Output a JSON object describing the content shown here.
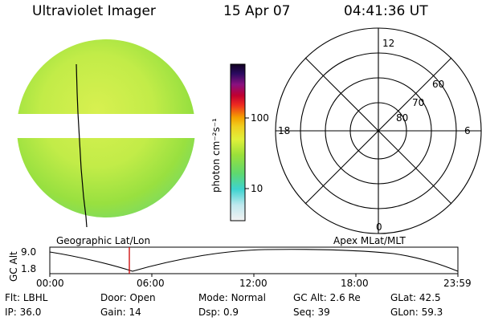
{
  "header": {
    "title": "Ultraviolet Imager",
    "date": "15 Apr 07",
    "time": "04:41:36 UT"
  },
  "colorbar": {
    "label": "photon cm⁻²s⁻¹",
    "ticks": [
      "100",
      "10"
    ]
  },
  "polar_plot": {
    "mlt_labels": [
      "12",
      "18",
      "6",
      "0"
    ],
    "mlat_labels": [
      "60",
      "70",
      "80"
    ]
  },
  "orbit_plot": {
    "left_label": "Geographic Lat/Lon",
    "right_label": "Apex MLat/MLT",
    "y_axis_title": "GC Alt",
    "y_ticks": [
      "9.0",
      "1.8"
    ],
    "x_ticks": [
      "00:00",
      "06:00",
      "12:00",
      "18:00",
      "23:59"
    ],
    "line_color": "#000000",
    "marker_color": "#cc0000"
  },
  "info": {
    "rows": [
      [
        {
          "label": "Flt:",
          "value": "LBHL"
        },
        {
          "label": "Door:",
          "value": "Open"
        },
        {
          "label": "Mode:",
          "value": "Normal"
        },
        {
          "label": "GC Alt:",
          "value": "2.6 Re"
        },
        {
          "label": "GLat:",
          "value": "42.5"
        }
      ],
      [
        {
          "label": "IP:",
          "value": "36.0"
        },
        {
          "label": "Gain:",
          "value": "14"
        },
        {
          "label": "Dsp:",
          "value": "0.9"
        },
        {
          "label": "Seq:",
          "value": "39"
        },
        {
          "label": "GLon:",
          "value": "59.3"
        }
      ]
    ]
  }
}
